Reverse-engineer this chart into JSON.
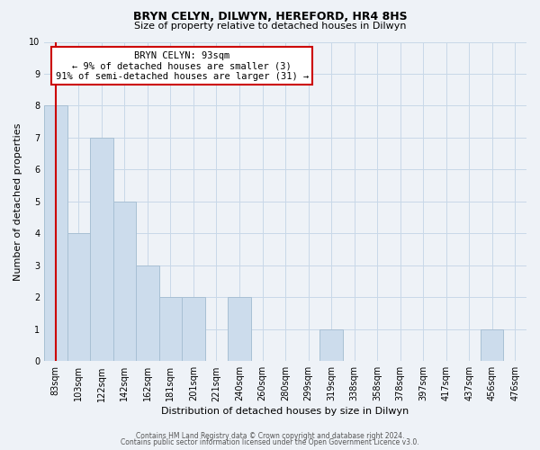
{
  "title": "BRYN CELYN, DILWYN, HEREFORD, HR4 8HS",
  "subtitle": "Size of property relative to detached houses in Dilwyn",
  "xlabel": "Distribution of detached houses by size in Dilwyn",
  "ylabel": "Number of detached properties",
  "bar_labels": [
    "83sqm",
    "103sqm",
    "122sqm",
    "142sqm",
    "162sqm",
    "181sqm",
    "201sqm",
    "221sqm",
    "240sqm",
    "260sqm",
    "280sqm",
    "299sqm",
    "319sqm",
    "338sqm",
    "358sqm",
    "378sqm",
    "397sqm",
    "417sqm",
    "437sqm",
    "456sqm",
    "476sqm"
  ],
  "bar_heights": [
    8,
    4,
    7,
    5,
    3,
    2,
    2,
    0,
    2,
    0,
    0,
    0,
    1,
    0,
    0,
    0,
    0,
    0,
    0,
    1,
    0
  ],
  "bar_color": "#ccdcec",
  "bar_edge_color": "#a8c0d4",
  "ylim": [
    0,
    10
  ],
  "yticks": [
    0,
    1,
    2,
    3,
    4,
    5,
    6,
    7,
    8,
    9,
    10
  ],
  "annotation_line1": "BRYN CELYN: 93sqm",
  "annotation_line2": "← 9% of detached houses are smaller (3)",
  "annotation_line3": "91% of semi-detached houses are larger (31) →",
  "annotation_box_color": "#ffffff",
  "annotation_box_edge": "#cc0000",
  "footer_line1": "Contains HM Land Registry data © Crown copyright and database right 2024.",
  "footer_line2": "Contains public sector information licensed under the Open Government Licence v3.0.",
  "grid_color": "#c8d8e8",
  "background_color": "#eef2f7",
  "title_fontsize": 9,
  "subtitle_fontsize": 8,
  "axis_label_fontsize": 8,
  "tick_fontsize": 7,
  "footer_fontsize": 5.5
}
